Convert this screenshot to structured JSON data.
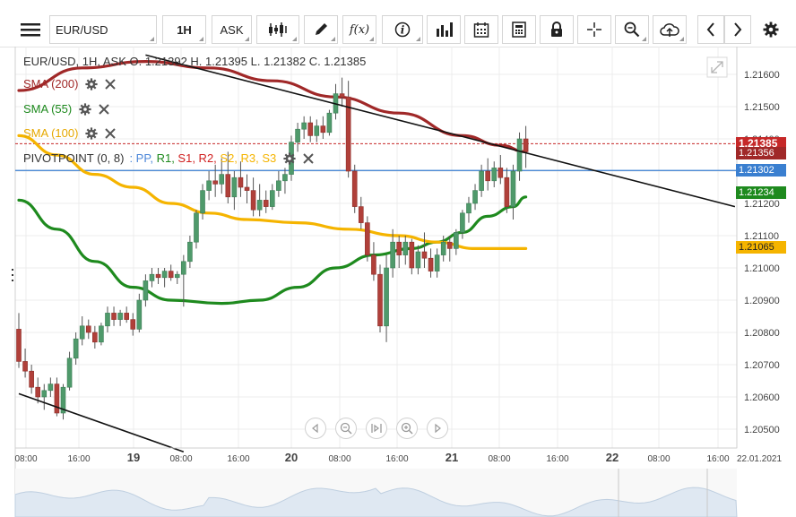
{
  "toolbar": {
    "symbol": "EUR/USD",
    "timeframe": "1H",
    "price_side": "ASK",
    "icons": [
      "menu-icon",
      "candlestick-type-icon",
      "draw-pencil-icon",
      "function-icon",
      "info-icon",
      "volume-bars-icon",
      "calendar-icon",
      "calculator-icon",
      "lock-icon",
      "crosshair-icon",
      "zoom-icon",
      "cloud-upload-icon",
      "chevron-left-icon",
      "chevron-right-icon",
      "gear-icon"
    ],
    "function_label": "f(x)"
  },
  "legend": {
    "ohlc_header": "EUR/USD, 1H, ASK   O. 1.21392 H. 1.21395 L. 1.21382 C. 1.21385",
    "indicators": [
      {
        "label": "SMA (200)",
        "color": "#a02828"
      },
      {
        "label": "SMA (55)",
        "color": "#1e8a1e"
      },
      {
        "label": "SMA (100)",
        "color": "#f5b400"
      }
    ],
    "pivot": {
      "label": "PIVOTPOINT (0, 8)",
      "parts": [
        {
          "text": ": PP,",
          "color": "#4a86d8"
        },
        {
          "text": " R1,",
          "color": "#1e8a1e"
        },
        {
          "text": " S1,",
          "color": "#d02020"
        },
        {
          "text": " R2,",
          "color": "#d02020"
        },
        {
          "text": " S2,",
          "color": "#f5b400"
        },
        {
          "text": " R3,",
          "color": "#f5b400"
        },
        {
          "text": " S3",
          "color": "#f5b400"
        }
      ]
    }
  },
  "chart_data": {
    "type": "candlestick",
    "symbol": "EUR/USD",
    "interval": "1H",
    "ylim": [
      1.2043,
      1.2165
    ],
    "y_ticks": [
      "1.21600",
      "1.21500",
      "1.21400",
      "1.21300",
      "1.21200",
      "1.21100",
      "1.21000",
      "1.20900",
      "1.20800",
      "1.20700",
      "1.20600",
      "1.20500"
    ],
    "x_ticks": [
      {
        "label": "08:00",
        "bold": false
      },
      {
        "label": "16:00",
        "bold": false
      },
      {
        "label": "19",
        "bold": true
      },
      {
        "label": "08:00",
        "bold": false
      },
      {
        "label": "16:00",
        "bold": false
      },
      {
        "label": "20",
        "bold": true
      },
      {
        "label": "08:00",
        "bold": false
      },
      {
        "label": "16:00",
        "bold": false
      },
      {
        "label": "21",
        "bold": true
      },
      {
        "label": "08:00",
        "bold": false
      },
      {
        "label": "16:00",
        "bold": false
      },
      {
        "label": "22",
        "bold": true
      },
      {
        "label": "08:00",
        "bold": false
      },
      {
        "label": "16:00",
        "bold": false
      },
      {
        "label": "22.01.2021",
        "bold": false
      }
    ],
    "candles": [
      [
        1.2081,
        1.2086,
        1.2069,
        1.2071
      ],
      [
        1.2071,
        1.2075,
        1.2066,
        1.2068
      ],
      [
        1.2068,
        1.207,
        1.2061,
        1.2063
      ],
      [
        1.2063,
        1.2066,
        1.2058,
        1.206
      ],
      [
        1.206,
        1.2064,
        1.2056,
        1.2062
      ],
      [
        1.2062,
        1.2066,
        1.206,
        1.2064
      ],
      [
        1.2064,
        1.2066,
        1.2054,
        1.2055
      ],
      [
        1.2055,
        1.2064,
        1.2053,
        1.2063
      ],
      [
        1.2063,
        1.2074,
        1.2062,
        1.2072
      ],
      [
        1.2072,
        1.208,
        1.207,
        1.2078
      ],
      [
        1.2078,
        1.2085,
        1.2076,
        1.2082
      ],
      [
        1.2082,
        1.2084,
        1.2078,
        1.208
      ],
      [
        1.208,
        1.2082,
        1.2075,
        1.2077
      ],
      [
        1.2077,
        1.2083,
        1.2076,
        1.2082
      ],
      [
        1.2082,
        1.2088,
        1.208,
        1.2086
      ],
      [
        1.2086,
        1.2088,
        1.2082,
        1.2084
      ],
      [
        1.2084,
        1.2087,
        1.2082,
        1.2086
      ],
      [
        1.2086,
        1.2088,
        1.2083,
        1.2084
      ],
      [
        1.2084,
        1.2086,
        1.2079,
        1.2081
      ],
      [
        1.2081,
        1.2092,
        1.208,
        1.209
      ],
      [
        1.209,
        1.2098,
        1.2088,
        1.2096
      ],
      [
        1.2096,
        1.21,
        1.2094,
        1.2098
      ],
      [
        1.2098,
        1.21,
        1.2095,
        1.2097
      ],
      [
        1.2097,
        1.21,
        1.2094,
        1.2099
      ],
      [
        1.2099,
        1.2101,
        1.2096,
        1.2097
      ],
      [
        1.2097,
        1.2099,
        1.2095,
        1.2098
      ],
      [
        1.2098,
        1.2104,
        1.2088,
        1.2102
      ],
      [
        1.2102,
        1.211,
        1.21,
        1.2108
      ],
      [
        1.2108,
        1.2118,
        1.2106,
        1.2117
      ],
      [
        1.2117,
        1.2126,
        1.2115,
        1.2124
      ],
      [
        1.2124,
        1.213,
        1.2121,
        1.2127
      ],
      [
        1.2127,
        1.2132,
        1.2122,
        1.2126
      ],
      [
        1.2126,
        1.2134,
        1.2123,
        1.2129
      ],
      [
        1.2129,
        1.2136,
        1.212,
        1.2122
      ],
      [
        1.2122,
        1.213,
        1.2118,
        1.2128
      ],
      [
        1.2128,
        1.2133,
        1.2122,
        1.2125
      ],
      [
        1.2125,
        1.2129,
        1.212,
        1.2124
      ],
      [
        1.2124,
        1.2128,
        1.2116,
        1.2118
      ],
      [
        1.2118,
        1.2126,
        1.2116,
        1.2121
      ],
      [
        1.2121,
        1.2124,
        1.2117,
        1.2119
      ],
      [
        1.2119,
        1.2126,
        1.2118,
        1.2124
      ],
      [
        1.2124,
        1.213,
        1.2122,
        1.2127
      ],
      [
        1.2127,
        1.2131,
        1.2123,
        1.2129
      ],
      [
        1.2129,
        1.2141,
        1.2127,
        1.2139
      ],
      [
        1.2139,
        1.2145,
        1.2136,
        1.2143
      ],
      [
        1.2143,
        1.2147,
        1.214,
        1.2145
      ],
      [
        1.2145,
        1.2147,
        1.2139,
        1.2141
      ],
      [
        1.2141,
        1.2146,
        1.2139,
        1.2144
      ],
      [
        1.2144,
        1.2147,
        1.214,
        1.2142
      ],
      [
        1.2142,
        1.2149,
        1.2141,
        1.2148
      ],
      [
        1.2148,
        1.2157,
        1.2146,
        1.2154
      ],
      [
        1.2154,
        1.2159,
        1.215,
        1.2153
      ],
      [
        1.2153,
        1.2158,
        1.2128,
        1.213
      ],
      [
        1.213,
        1.2132,
        1.2117,
        1.2119
      ],
      [
        1.2119,
        1.2122,
        1.2112,
        1.2114
      ],
      [
        1.2114,
        1.2116,
        1.2102,
        1.2104
      ],
      [
        1.2104,
        1.2108,
        1.2096,
        1.2098
      ],
      [
        1.2098,
        1.2101,
        1.208,
        1.2082
      ],
      [
        1.2082,
        1.2104,
        1.2077,
        1.21
      ],
      [
        1.21,
        1.2112,
        1.2097,
        1.2108
      ],
      [
        1.2108,
        1.211,
        1.21,
        1.2104
      ],
      [
        1.2104,
        1.211,
        1.2101,
        1.2108
      ],
      [
        1.2108,
        1.2109,
        1.2098,
        1.21
      ],
      [
        1.21,
        1.2107,
        1.2098,
        1.2105
      ],
      [
        1.2105,
        1.2111,
        1.21,
        1.2103
      ],
      [
        1.2103,
        1.2106,
        1.2097,
        1.2099
      ],
      [
        1.2099,
        1.2106,
        1.2097,
        1.2104
      ],
      [
        1.2104,
        1.211,
        1.2102,
        1.2108
      ],
      [
        1.2108,
        1.211,
        1.2102,
        1.2106
      ],
      [
        1.2106,
        1.2112,
        1.2104,
        1.2111
      ],
      [
        1.2111,
        1.2118,
        1.2109,
        1.2117
      ],
      [
        1.2117,
        1.2122,
        1.2114,
        1.212
      ],
      [
        1.212,
        1.2126,
        1.2118,
        1.2124
      ],
      [
        1.2124,
        1.2132,
        1.2122,
        1.213
      ],
      [
        1.213,
        1.2134,
        1.2124,
        1.2127
      ],
      [
        1.2127,
        1.2133,
        1.2125,
        1.2131
      ],
      [
        1.2131,
        1.2135,
        1.2126,
        1.2128
      ],
      [
        1.2128,
        1.2131,
        1.2117,
        1.2119
      ],
      [
        1.2119,
        1.2132,
        1.2115,
        1.213
      ],
      [
        1.213,
        1.2142,
        1.2127,
        1.214
      ],
      [
        1.214,
        1.2144,
        1.2131,
        1.2136
      ]
    ],
    "series": [
      {
        "name": "SMA (200)",
        "color": "#a02828",
        "values": [
          [
            0,
            1.2155
          ],
          [
            10,
            1.2162
          ],
          [
            20,
            1.2164
          ],
          [
            30,
            1.2162
          ],
          [
            40,
            1.2158
          ],
          [
            50,
            1.2153
          ],
          [
            60,
            1.2148
          ],
          [
            70,
            1.2141
          ],
          [
            76,
            1.2138
          ],
          [
            80,
            1.2136
          ]
        ]
      },
      {
        "name": "SMA (55)",
        "color": "#1e8a1e",
        "values": [
          [
            0,
            1.2121
          ],
          [
            6,
            1.2112
          ],
          [
            12,
            1.2102
          ],
          [
            18,
            1.2094
          ],
          [
            24,
            1.209
          ],
          [
            32,
            1.2089
          ],
          [
            38,
            1.209
          ],
          [
            44,
            1.2094
          ],
          [
            50,
            1.21
          ],
          [
            56,
            1.2104
          ],
          [
            62,
            1.2106
          ],
          [
            66,
            1.2108
          ],
          [
            70,
            1.2111
          ],
          [
            74,
            1.2116
          ],
          [
            78,
            1.2119
          ],
          [
            80,
            1.2122
          ]
        ]
      },
      {
        "name": "SMA (100)",
        "color": "#f5b400",
        "values": [
          [
            0,
            1.2141
          ],
          [
            6,
            1.2135
          ],
          [
            12,
            1.2129
          ],
          [
            18,
            1.2125
          ],
          [
            24,
            1.212
          ],
          [
            30,
            1.2117
          ],
          [
            36,
            1.2115
          ],
          [
            44,
            1.2114
          ],
          [
            52,
            1.2112
          ],
          [
            60,
            1.211
          ],
          [
            66,
            1.2108
          ],
          [
            72,
            1.2106
          ],
          [
            76,
            1.2106
          ],
          [
            80,
            1.2106
          ]
        ]
      }
    ],
    "trendlines": [
      {
        "name": "upper",
        "p1": [
          20,
          1.2166
        ],
        "p2": [
          113,
          1.2119
        ]
      },
      {
        "name": "lower",
        "p1": [
          0,
          1.2061
        ],
        "p2": [
          26,
          1.2043
        ]
      }
    ],
    "price_lines": [
      {
        "value": 1.21385,
        "label": "1.21385",
        "bg": "#c62828",
        "fg": "#ffffff",
        "style": "dashed"
      },
      {
        "value": 1.21356,
        "label": "1.21356",
        "bg": "#a02828",
        "fg": "#ffffff",
        "style": "none"
      },
      {
        "value": 1.21302,
        "label": "1.21302",
        "bg": "#3a7fd0",
        "fg": "#ffffff",
        "style": "solid"
      },
      {
        "value": 1.21234,
        "label": "1.21234",
        "bg": "#1e8a1e",
        "fg": "#ffffff",
        "style": "none"
      },
      {
        "value": 1.21065,
        "label": "1.21065",
        "bg": "#f5b400",
        "fg": "#222222",
        "style": "none"
      }
    ]
  },
  "nav_buttons": [
    "scroll-left-icon",
    "zoom-out-icon",
    "reset-zoom-icon",
    "zoom-in-icon",
    "scroll-right-icon"
  ]
}
